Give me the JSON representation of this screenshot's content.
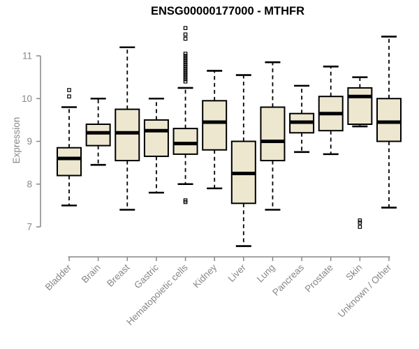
{
  "title": "ENSG00000177000 - MTHFR",
  "chart_data": {
    "type": "boxplot",
    "title": "ENSG00000177000 - MTHFR",
    "xlabel": "",
    "ylabel": "Expression",
    "ylim": [
      7,
      11
    ],
    "y_ticks": [
      7,
      8,
      9,
      10,
      11
    ],
    "grid": false,
    "legend": "none",
    "categories": [
      "Bladder",
      "Brain",
      "Breast",
      "Gastric",
      "Hematopoietic cells",
      "Kidney",
      "Liver",
      "Lung",
      "Pancreas",
      "Prostate",
      "Skin",
      "Unknown / Other"
    ],
    "series": [
      {
        "name": "Bladder",
        "whisker_low": 7.5,
        "q1": 8.2,
        "median": 8.6,
        "q3": 8.85,
        "whisker_high": 9.8,
        "outliers": [
          10.2,
          10.05
        ]
      },
      {
        "name": "Brain",
        "whisker_low": 8.45,
        "q1": 8.9,
        "median": 9.2,
        "q3": 9.4,
        "whisker_high": 10.0,
        "outliers": []
      },
      {
        "name": "Breast",
        "whisker_low": 7.4,
        "q1": 8.55,
        "median": 9.2,
        "q3": 9.75,
        "whisker_high": 11.2,
        "outliers": []
      },
      {
        "name": "Gastric",
        "whisker_low": 7.8,
        "q1": 8.65,
        "median": 9.25,
        "q3": 9.5,
        "whisker_high": 10.0,
        "outliers": []
      },
      {
        "name": "Hematopoietic cells",
        "whisker_low": 8.0,
        "q1": 8.7,
        "median": 8.95,
        "q3": 9.3,
        "whisker_high": 10.25,
        "outliers": [
          11.65,
          11.5,
          11.4,
          11.05,
          11.0,
          10.95,
          10.9,
          10.85,
          10.8,
          10.75,
          10.7,
          10.65,
          10.6,
          10.55,
          10.5,
          10.45,
          10.4,
          7.62,
          7.58
        ]
      },
      {
        "name": "Kidney",
        "whisker_low": 7.9,
        "q1": 8.8,
        "median": 9.45,
        "q3": 9.95,
        "whisker_high": 10.65,
        "outliers": []
      },
      {
        "name": "Liver",
        "whisker_low": 6.55,
        "q1": 7.55,
        "median": 8.25,
        "q3": 9.0,
        "whisker_high": 10.55,
        "outliers": []
      },
      {
        "name": "Lung",
        "whisker_low": 7.4,
        "q1": 8.55,
        "median": 9.0,
        "q3": 9.8,
        "whisker_high": 10.85,
        "outliers": []
      },
      {
        "name": "Pancreas",
        "whisker_low": 8.75,
        "q1": 9.2,
        "median": 9.45,
        "q3": 9.65,
        "whisker_high": 10.3,
        "outliers": []
      },
      {
        "name": "Prostate",
        "whisker_low": 8.7,
        "q1": 9.25,
        "median": 9.65,
        "q3": 10.05,
        "whisker_high": 10.75,
        "outliers": []
      },
      {
        "name": "Skin",
        "whisker_low": 9.35,
        "q1": 9.4,
        "median": 10.05,
        "q3": 10.25,
        "whisker_high": 10.5,
        "outliers": [
          7.15,
          7.1,
          7.0
        ]
      },
      {
        "name": "Unknown / Other",
        "whisker_low": 7.45,
        "q1": 9.0,
        "median": 9.45,
        "q3": 10.0,
        "whisker_high": 11.45,
        "outliers": []
      }
    ]
  },
  "colors": {
    "box_fill": "#EDE7D0",
    "box_stroke": "#000000",
    "median": "#000000",
    "axis": "#878787",
    "tick_label": "#878787",
    "title": "#000000",
    "background": "#FFFFFF"
  }
}
